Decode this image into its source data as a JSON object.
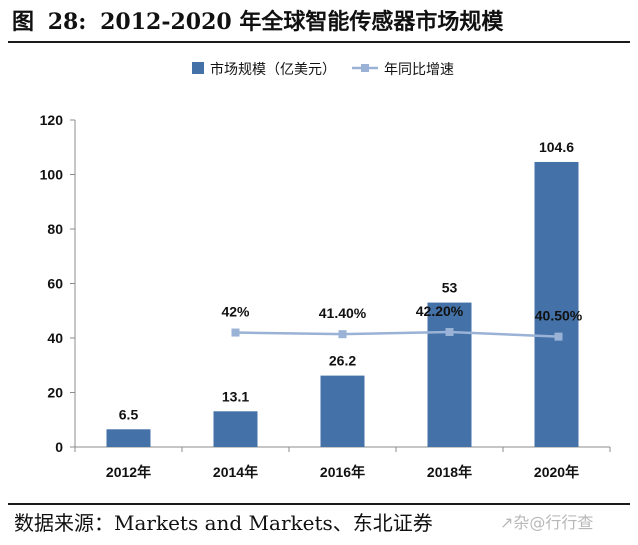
{
  "title": {
    "prefix": "图",
    "number": "28:",
    "text": "2012-2020 年全球智能传感器市场规模"
  },
  "source": "数据来源：Markets and Markets、东北证券",
  "watermark": "↗杂@行行查",
  "colors": {
    "bar": "#4472a8",
    "line": "#99b2d6",
    "axis": "#8c8c8c"
  },
  "chart_data": {
    "type": "bar",
    "categories": [
      "2012年",
      "2014年",
      "2016年",
      "2018年",
      "2020年"
    ],
    "ylim": [
      0,
      120
    ],
    "yticks": [
      "0",
      "20",
      "40",
      "60",
      "80",
      "100",
      "120"
    ],
    "legend_position": "top",
    "grid": false,
    "series": [
      {
        "name": "市场规模（亿美元）",
        "type": "bar",
        "values": [
          6.5,
          13.1,
          26.2,
          53,
          104.6
        ],
        "labels": [
          "6.5",
          "13.1",
          "26.2",
          "53",
          "104.6"
        ]
      },
      {
        "name": "年同比增速",
        "type": "line",
        "values": [
          null,
          42,
          41.4,
          42.2,
          40.5
        ],
        "labels": [
          "",
          "42%",
          "41.40%",
          "42.20%",
          "40.50%"
        ]
      }
    ]
  }
}
